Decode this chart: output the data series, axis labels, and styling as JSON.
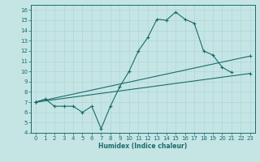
{
  "title": "",
  "xlabel": "Humidex (Indice chaleur)",
  "xlim": [
    -0.5,
    23.5
  ],
  "ylim": [
    4,
    16.5
  ],
  "xticks": [
    0,
    1,
    2,
    3,
    4,
    5,
    6,
    7,
    8,
    9,
    10,
    11,
    12,
    13,
    14,
    15,
    16,
    17,
    18,
    19,
    20,
    21,
    22,
    23
  ],
  "yticks": [
    4,
    5,
    6,
    7,
    8,
    9,
    10,
    11,
    12,
    13,
    14,
    15,
    16
  ],
  "bg_color": "#c5e5e5",
  "line_color": "#1a6b6b",
  "grid_color": "#b0d5d5",
  "line1_x": [
    0,
    1,
    2,
    3,
    4,
    5,
    6,
    7,
    8,
    9,
    10,
    11,
    12,
    13,
    14,
    15,
    16,
    17,
    18,
    19,
    20,
    21
  ],
  "line1_y": [
    7.0,
    7.3,
    6.6,
    6.6,
    6.6,
    6.0,
    6.6,
    4.4,
    6.6,
    8.5,
    10.0,
    12.0,
    13.3,
    15.1,
    15.0,
    15.8,
    15.1,
    14.7,
    12.0,
    11.6,
    10.4,
    9.9
  ],
  "line2_x": [
    0,
    23
  ],
  "line2_y": [
    7.0,
    9.8
  ],
  "line3_x": [
    0,
    23
  ],
  "line3_y": [
    7.0,
    11.5
  ],
  "markersize": 3,
  "linewidth": 0.8,
  "tick_fontsize": 5,
  "xlabel_fontsize": 5.5
}
